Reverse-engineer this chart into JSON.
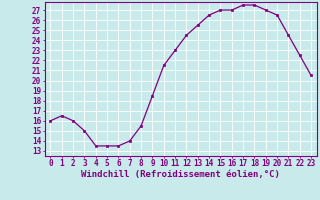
{
  "x": [
    0,
    1,
    2,
    3,
    4,
    5,
    6,
    7,
    8,
    9,
    10,
    11,
    12,
    13,
    14,
    15,
    16,
    17,
    18,
    19,
    20,
    21,
    22,
    23
  ],
  "y": [
    16,
    16.5,
    16,
    15,
    13.5,
    13.5,
    13.5,
    14,
    15.5,
    18.5,
    21.5,
    23,
    24.5,
    25.5,
    26.5,
    27,
    27,
    27.5,
    27.5,
    27,
    26.5,
    24.5,
    22.5,
    20.5
  ],
  "line_color": "#800080",
  "marker": "s",
  "marker_size": 2.0,
  "bg_color": "#c8eaea",
  "grid_color": "#b0d8d8",
  "xlabel": "Windchill (Refroidissement éolien,°C)",
  "ylim_min": 12.5,
  "ylim_max": 27.8,
  "xlim_min": -0.5,
  "xlim_max": 23.5,
  "yticks": [
    13,
    14,
    15,
    16,
    17,
    18,
    19,
    20,
    21,
    22,
    23,
    24,
    25,
    26,
    27
  ],
  "xticks": [
    0,
    1,
    2,
    3,
    4,
    5,
    6,
    7,
    8,
    9,
    10,
    11,
    12,
    13,
    14,
    15,
    16,
    17,
    18,
    19,
    20,
    21,
    22,
    23
  ],
  "tick_label_fontsize": 5.5,
  "xlabel_fontsize": 6.5,
  "axis_color": "#800080",
  "spine_color": "#800080",
  "grid_line_color": "#ffffff"
}
